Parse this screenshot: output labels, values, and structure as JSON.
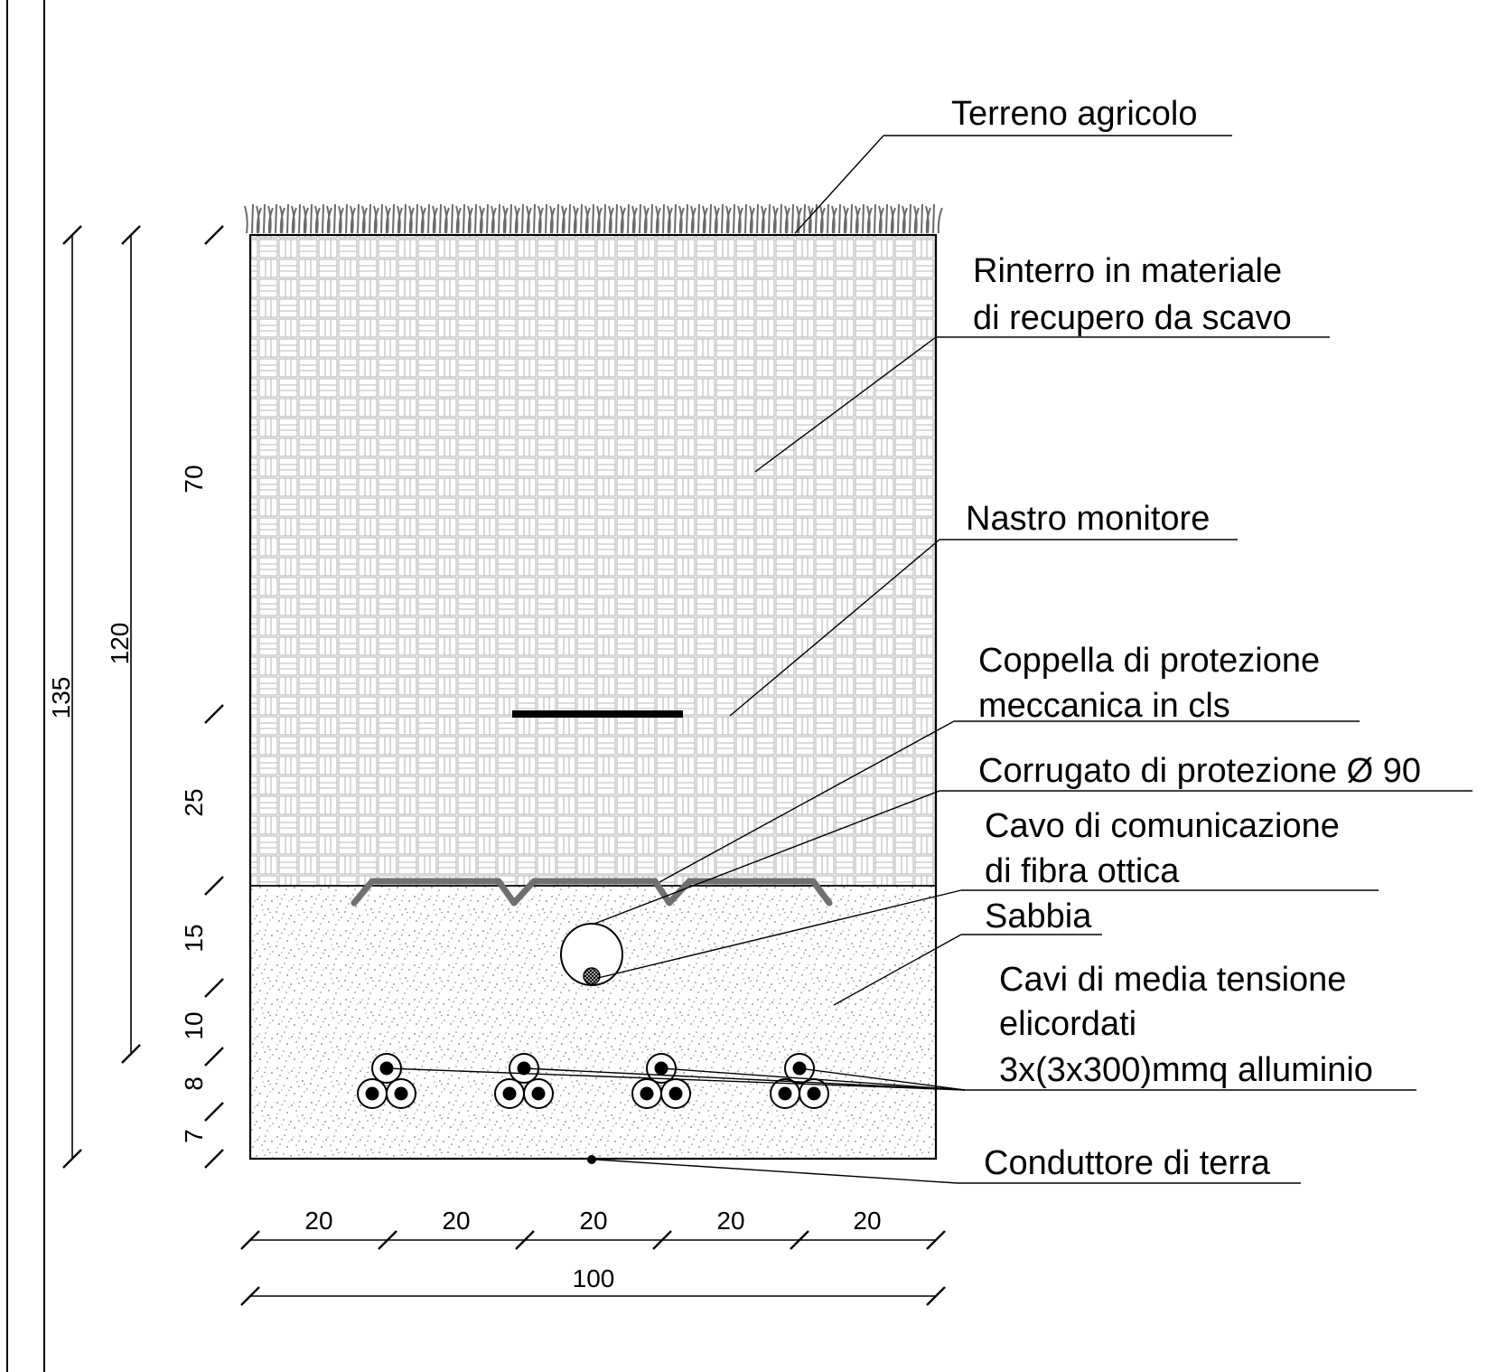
{
  "diagram": {
    "labels": {
      "terreno": "Terreno agricolo",
      "rinterro_1": "Rinterro in materiale",
      "rinterro_2": "di recupero da scavo",
      "nastro": "Nastro monitore",
      "coppella_1": "Coppella di protezione",
      "coppella_2": "meccanica in cls",
      "corrugato": "Corrugato di protezione Ø 90",
      "cavo_fibra_1": "Cavo di comunicazione",
      "cavo_fibra_2": "di fibra ottica",
      "sabbia": "Sabbia",
      "cavi_mt_1": "Cavi di  media  tensione",
      "cavi_mt_2": "elicordati",
      "cavi_mt_3": "3x(3x300)mmq alluminio",
      "conduttore": "Conduttore di terra"
    },
    "vertical_dimensions": {
      "overall": "135",
      "to_cables": "120",
      "segments": [
        "70",
        "25",
        "15",
        "10",
        "8",
        "7"
      ]
    },
    "horizontal_dimensions": {
      "segments": [
        "20",
        "20",
        "20",
        "20",
        "20"
      ],
      "total": "100"
    },
    "colors": {
      "line": "#000000",
      "pattern": "#b8b8b8",
      "sand_dots": "#7a7a7a",
      "coppella": "#707070",
      "grass": "#6a6a6a"
    }
  }
}
